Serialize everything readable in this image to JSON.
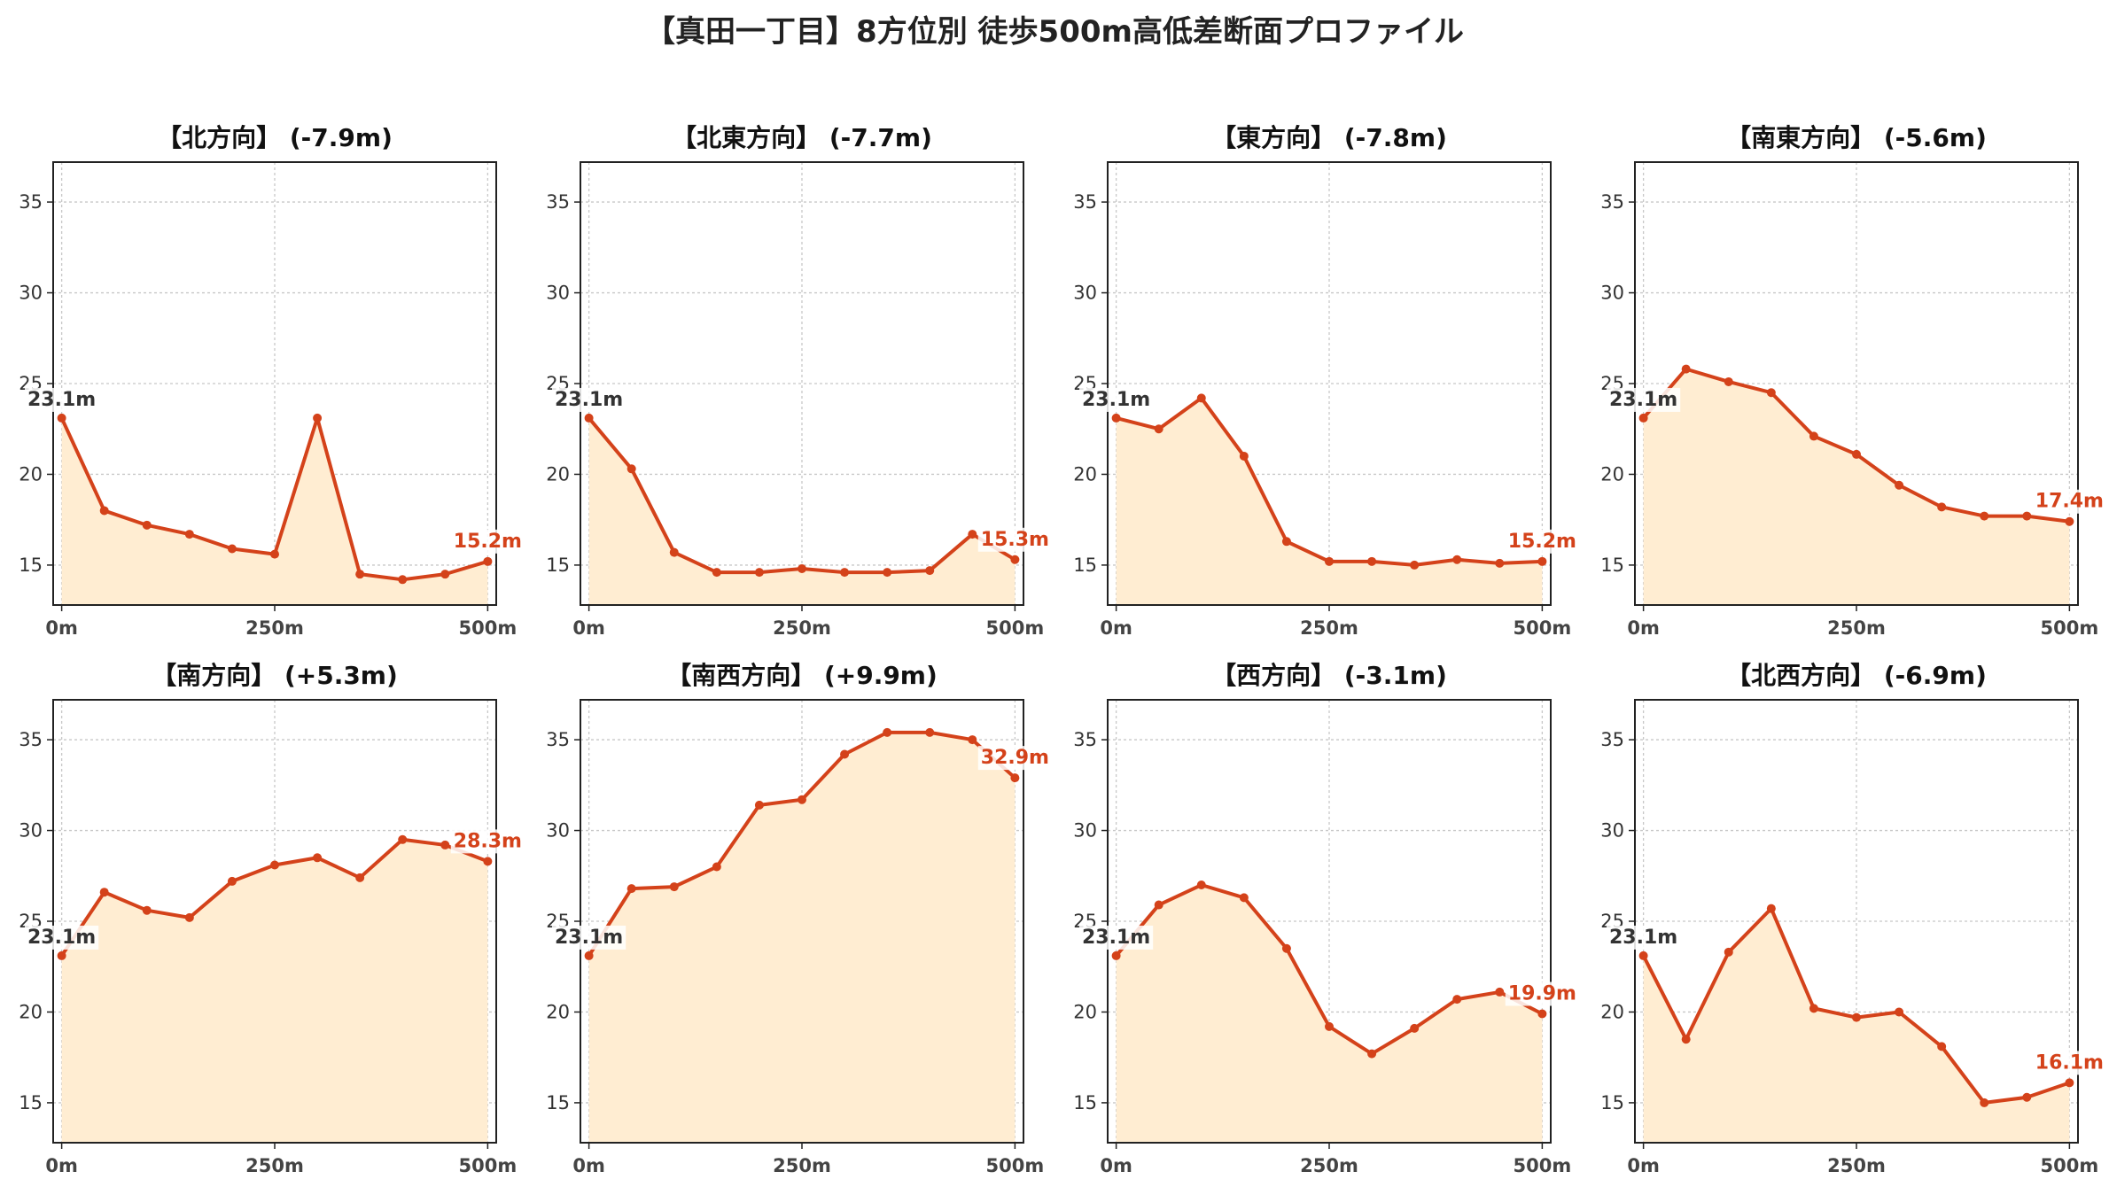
{
  "title": "【真田一丁目】8方位別 徒歩500m高低差断面プロファイル",
  "colors": {
    "line": "#d4421a",
    "fill": "#ffedd2",
    "grid": "#c8c8c8",
    "start_label": "#333333",
    "end_label": "#d4421a"
  },
  "chart_data": [
    {
      "type": "area",
      "title": "【北方向】 (-7.9m)",
      "x": [
        0,
        50,
        100,
        150,
        200,
        250,
        300,
        350,
        400,
        450,
        500
      ],
      "y": [
        23.1,
        18.0,
        17.2,
        16.7,
        15.9,
        15.6,
        23.1,
        14.5,
        14.2,
        14.5,
        15.2
      ],
      "start_label": "23.1m",
      "end_label": "15.2m",
      "xticks": [
        "0m",
        "250m",
        "500m"
      ],
      "xtick_values": [
        0,
        250,
        500
      ],
      "yticks": [
        15,
        20,
        25,
        30,
        35
      ],
      "ylim": [
        12.8,
        37.2
      ],
      "xlim": [
        -10,
        510
      ],
      "grid": true
    },
    {
      "type": "area",
      "title": "【北東方向】 (-7.7m)",
      "x": [
        0,
        50,
        100,
        150,
        200,
        250,
        300,
        350,
        400,
        450,
        500
      ],
      "y": [
        23.1,
        20.3,
        15.7,
        14.6,
        14.6,
        14.8,
        14.6,
        14.6,
        14.7,
        16.7,
        15.3
      ],
      "start_label": "23.1m",
      "end_label": "15.3m",
      "xticks": [
        "0m",
        "250m",
        "500m"
      ],
      "xtick_values": [
        0,
        250,
        500
      ],
      "yticks": [
        15,
        20,
        25,
        30,
        35
      ],
      "ylim": [
        12.8,
        37.2
      ],
      "xlim": [
        -10,
        510
      ],
      "grid": true
    },
    {
      "type": "area",
      "title": "【東方向】 (-7.8m)",
      "x": [
        0,
        50,
        100,
        150,
        200,
        250,
        300,
        350,
        400,
        450,
        500
      ],
      "y": [
        23.1,
        22.5,
        24.2,
        21.0,
        16.3,
        15.2,
        15.2,
        15.0,
        15.3,
        15.1,
        15.2
      ],
      "start_label": "23.1m",
      "end_label": "15.2m",
      "xticks": [
        "0m",
        "250m",
        "500m"
      ],
      "xtick_values": [
        0,
        250,
        500
      ],
      "yticks": [
        15,
        20,
        25,
        30,
        35
      ],
      "ylim": [
        12.8,
        37.2
      ],
      "xlim": [
        -10,
        510
      ],
      "grid": true
    },
    {
      "type": "area",
      "title": "【南東方向】 (-5.6m)",
      "x": [
        0,
        50,
        100,
        150,
        200,
        250,
        300,
        350,
        400,
        450,
        500
      ],
      "y": [
        23.1,
        25.8,
        25.1,
        24.5,
        22.1,
        21.1,
        19.4,
        18.2,
        17.7,
        17.7,
        17.4
      ],
      "start_label": "23.1m",
      "end_label": "17.4m",
      "xticks": [
        "0m",
        "250m",
        "500m"
      ],
      "xtick_values": [
        0,
        250,
        500
      ],
      "yticks": [
        15,
        20,
        25,
        30,
        35
      ],
      "ylim": [
        12.8,
        37.2
      ],
      "xlim": [
        -10,
        510
      ],
      "grid": true
    },
    {
      "type": "area",
      "title": "【南方向】 (+5.3m)",
      "x": [
        0,
        50,
        100,
        150,
        200,
        250,
        300,
        350,
        400,
        450,
        500
      ],
      "y": [
        23.1,
        26.6,
        25.6,
        25.2,
        27.2,
        28.1,
        28.5,
        27.4,
        29.5,
        29.2,
        28.3
      ],
      "start_label": "23.1m",
      "end_label": "28.3m",
      "xticks": [
        "0m",
        "250m",
        "500m"
      ],
      "xtick_values": [
        0,
        250,
        500
      ],
      "yticks": [
        15,
        20,
        25,
        30,
        35
      ],
      "ylim": [
        12.8,
        37.2
      ],
      "xlim": [
        -10,
        510
      ],
      "grid": true
    },
    {
      "type": "area",
      "title": "【南西方向】 (+9.9m)",
      "x": [
        0,
        50,
        100,
        150,
        200,
        250,
        300,
        350,
        400,
        450,
        500
      ],
      "y": [
        23.1,
        26.8,
        26.9,
        28.0,
        31.4,
        31.7,
        34.2,
        35.4,
        35.4,
        35.0,
        32.9
      ],
      "start_label": "23.1m",
      "end_label": "32.9m",
      "xticks": [
        "0m",
        "250m",
        "500m"
      ],
      "xtick_values": [
        0,
        250,
        500
      ],
      "yticks": [
        15,
        20,
        25,
        30,
        35
      ],
      "ylim": [
        12.8,
        37.2
      ],
      "xlim": [
        -10,
        510
      ],
      "grid": true
    },
    {
      "type": "area",
      "title": "【西方向】 (-3.1m)",
      "x": [
        0,
        50,
        100,
        150,
        200,
        250,
        300,
        350,
        400,
        450,
        500
      ],
      "y": [
        23.1,
        25.9,
        27.0,
        26.3,
        23.5,
        19.2,
        17.7,
        19.1,
        20.7,
        21.1,
        19.9
      ],
      "start_label": "23.1m",
      "end_label": "19.9m",
      "xticks": [
        "0m",
        "250m",
        "500m"
      ],
      "xtick_values": [
        0,
        250,
        500
      ],
      "yticks": [
        15,
        20,
        25,
        30,
        35
      ],
      "ylim": [
        12.8,
        37.2
      ],
      "xlim": [
        -10,
        510
      ],
      "grid": true
    },
    {
      "type": "area",
      "title": "【北西方向】 (-6.9m)",
      "x": [
        0,
        50,
        100,
        150,
        200,
        250,
        300,
        350,
        400,
        450,
        500
      ],
      "y": [
        23.1,
        18.5,
        23.3,
        25.7,
        20.2,
        19.7,
        20.0,
        18.1,
        15.0,
        15.3,
        16.1
      ],
      "start_label": "23.1m",
      "end_label": "16.1m",
      "xticks": [
        "0m",
        "250m",
        "500m"
      ],
      "xtick_values": [
        0,
        250,
        500
      ],
      "yticks": [
        15,
        20,
        25,
        30,
        35
      ],
      "ylim": [
        12.8,
        37.2
      ],
      "xlim": [
        -10,
        510
      ],
      "grid": true
    }
  ]
}
